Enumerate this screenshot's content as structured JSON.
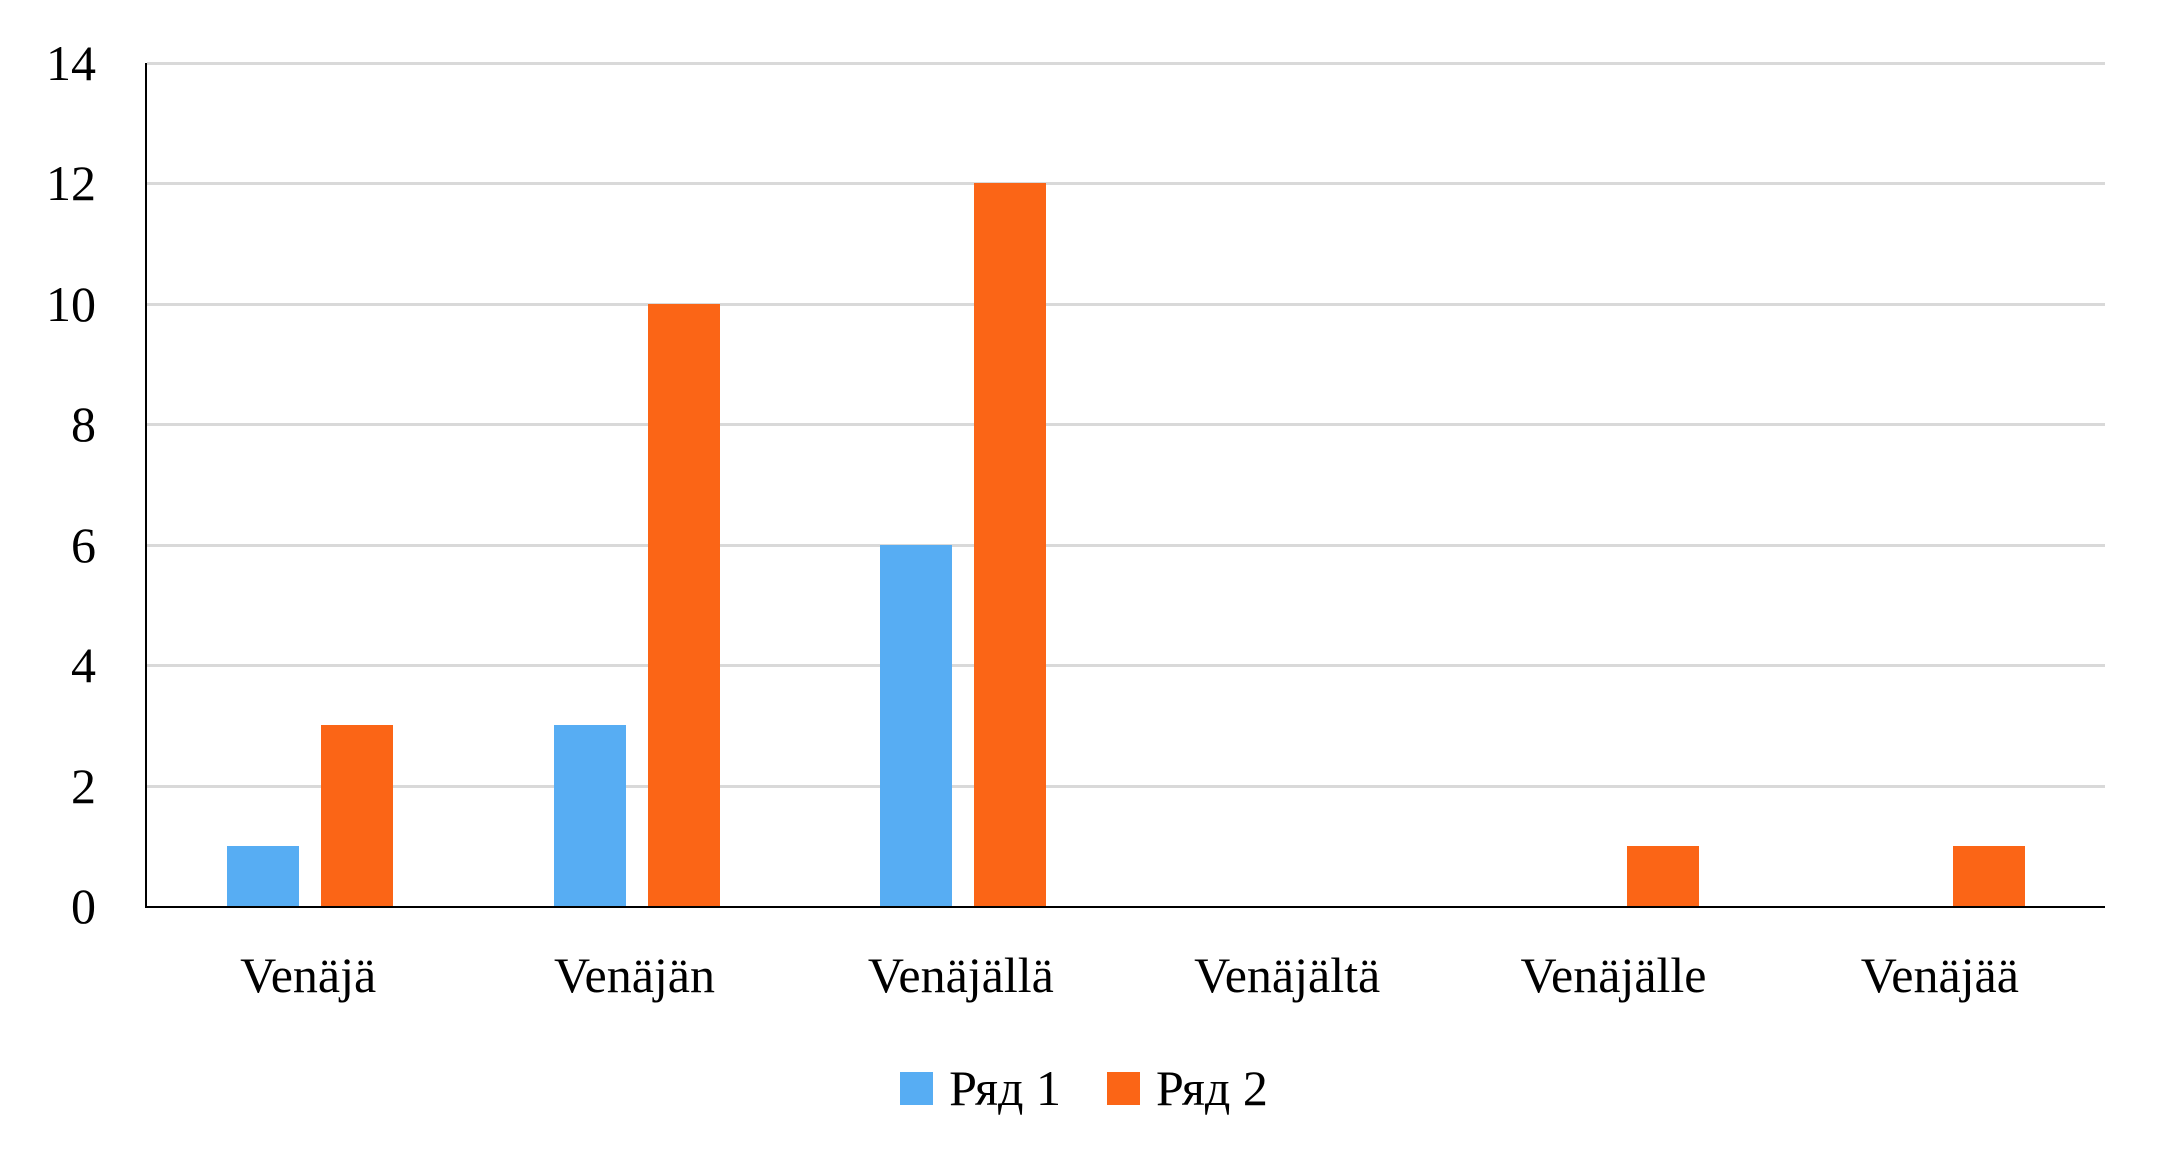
{
  "chart_data": {
    "type": "bar",
    "categories": [
      "Venäjä",
      "Venäjän",
      "Venäjällä",
      "Venäjältä",
      "Venäjälle",
      "Venäjää"
    ],
    "series": [
      {
        "name": "Ряд 1",
        "color": "#57ADF3",
        "values": [
          1,
          3,
          6,
          0,
          0,
          0
        ]
      },
      {
        "name": "Ряд 2",
        "color": "#FB6516",
        "values": [
          3,
          10,
          12,
          0,
          1,
          1
        ]
      }
    ],
    "title": "",
    "xlabel": "",
    "ylabel": "",
    "ylim": [
      0,
      14
    ],
    "yticks": [
      0,
      2,
      4,
      6,
      8,
      10,
      12,
      14
    ],
    "grid": true,
    "legend_position": "bottom",
    "colors": {
      "gridline": "#D9D9D9",
      "axis": "#000000",
      "text": "#000000",
      "background": "#FFFFFF"
    }
  }
}
